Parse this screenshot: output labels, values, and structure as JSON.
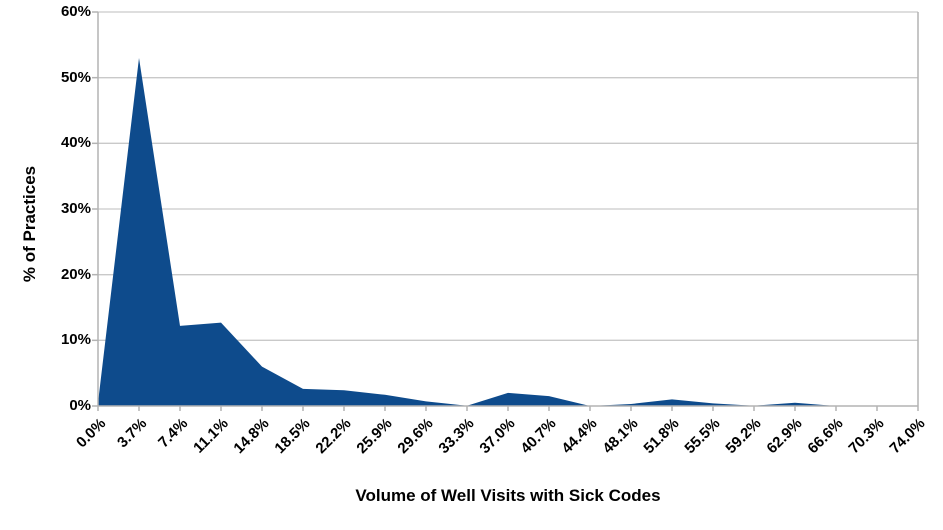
{
  "chart_data": {
    "type": "area",
    "title": "",
    "xlabel": "Volume of Well Visits with Sick Codes",
    "ylabel": "% of Practices",
    "categories": [
      "0.0%",
      "3.7%",
      "7.4%",
      "11.1%",
      "14.8%",
      "18.5%",
      "22.2%",
      "25.9%",
      "29.6%",
      "33.3%",
      "37.0%",
      "40.7%",
      "44.4%",
      "48.1%",
      "51.8%",
      "55.5%",
      "59.2%",
      "62.9%",
      "66.6%",
      "70.3%",
      "74.0%"
    ],
    "values": [
      0.5,
      53,
      12.2,
      12.7,
      6,
      2.6,
      2.4,
      1.7,
      0.7,
      0.05,
      2,
      1.5,
      0,
      0.3,
      1,
      0.4,
      0.05,
      0.5,
      0,
      0,
      0
    ],
    "y_ticks": [
      "0%",
      "10%",
      "20%",
      "30%",
      "40%",
      "50%",
      "60%"
    ],
    "ylim": [
      0,
      60
    ],
    "grid": "horizontal",
    "legend": "none",
    "colors": {
      "series_fill": "#0E4B8C",
      "grid_line": "#C9C9C9",
      "axis_line": "#B3B3B3",
      "label_text": "#000000",
      "background": "#FFFFFF"
    }
  }
}
